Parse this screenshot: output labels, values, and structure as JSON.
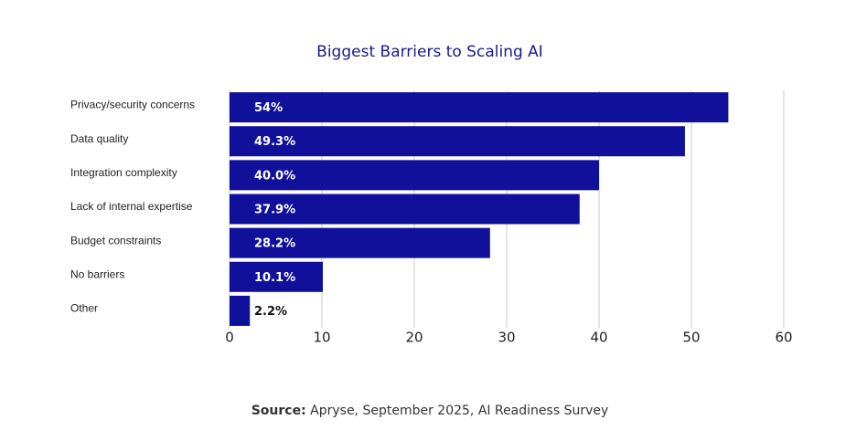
{
  "chart_data": {
    "type": "bar",
    "orientation": "horizontal",
    "title": "Biggest Barriers to Scaling AI",
    "categories": [
      "Privacy/security concerns",
      "Data quality",
      "Integration complexity",
      "Lack of internal expertise",
      "Budget constraints",
      "No barriers",
      "Other"
    ],
    "values": [
      54,
      49.3,
      40.0,
      37.9,
      28.2,
      10.1,
      2.2
    ],
    "value_labels": [
      "54%",
      "49.3%",
      "40.0%",
      "37.9%",
      "28.2%",
      "10.1%",
      "2.2%"
    ],
    "color": "#10109a",
    "xlim": [
      0,
      60
    ],
    "xticks": [
      0,
      10,
      20,
      30,
      40,
      50,
      60
    ],
    "grid": true,
    "source_label": "Source:",
    "source_text": "Apryse, September 2025, AI Readiness Survey"
  }
}
